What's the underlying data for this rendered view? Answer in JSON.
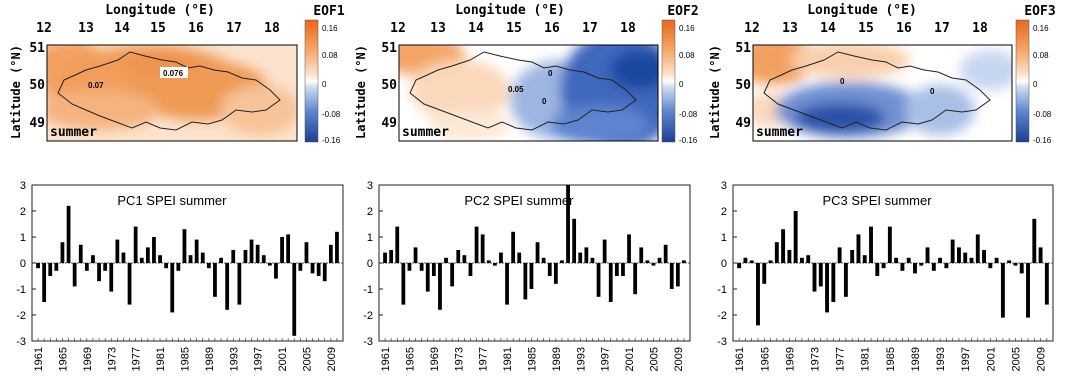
{
  "maps": [
    {
      "id": "eof1",
      "label": "EOF1",
      "season_label": "summer",
      "lon_title": "Longitude (°E)",
      "lat_title": "Latitude (°N)",
      "lon_ticks": [
        "12",
        "13",
        "14",
        "15",
        "16",
        "17",
        "18"
      ],
      "lat_ticks": [
        "51",
        "50",
        "49"
      ],
      "colorbar_ticks": [
        "0.16",
        "0.08",
        "0",
        "-0.08",
        "-0.16"
      ],
      "annotations": [
        "0.07",
        "0.076"
      ],
      "pattern": "uniform-positive",
      "colors": {
        "positive": "#f08a3c",
        "negative": "#1f4fa8",
        "neutral": "#ffffff"
      }
    },
    {
      "id": "eof2",
      "label": "EOF2",
      "season_label": "summer",
      "lon_title": "Longitude (°E)",
      "lat_title": "Latitude (°N)",
      "lon_ticks": [
        "12",
        "13",
        "14",
        "15",
        "16",
        "17",
        "18"
      ],
      "lat_ticks": [
        "51",
        "50",
        "49"
      ],
      "colorbar_ticks": [
        "0.16",
        "0.08",
        "0",
        "-0.08",
        "-0.16"
      ],
      "annotations": [
        "0",
        "0.05",
        "0"
      ],
      "pattern": "west-east-dipole",
      "colors": {
        "positive": "#f08a3c",
        "negative": "#1f4fa8",
        "neutral": "#ffffff"
      }
    },
    {
      "id": "eof3",
      "label": "EOF3",
      "season_label": "summer",
      "lon_title": "Longitude (°E)",
      "lat_title": "Latitude (°N)",
      "lon_ticks": [
        "12",
        "13",
        "14",
        "15",
        "16",
        "17",
        "18"
      ],
      "lat_ticks": [
        "51",
        "50",
        "49"
      ],
      "colorbar_ticks": [
        "0.16",
        "0.08",
        "0",
        "-0.08",
        "-0.16"
      ],
      "annotations": [
        "0",
        "0"
      ],
      "pattern": "north-south-dipole",
      "colors": {
        "positive": "#f08a3c",
        "negative": "#1f4fa8",
        "neutral": "#ffffff"
      }
    }
  ],
  "chart_data": [
    {
      "type": "bar",
      "title": "PC1 SPEI summer",
      "ylim": [
        -3,
        3
      ],
      "yticks": [
        "3",
        "2",
        "1",
        "0",
        "-1",
        "-2",
        "-3"
      ],
      "xtick_labels": [
        "1961",
        "1965",
        "1969",
        "1973",
        "1977",
        "1981",
        "1985",
        "1989",
        "1993",
        "1997",
        "2001",
        "2005",
        "2009"
      ],
      "x": [
        1961,
        1962,
        1963,
        1964,
        1965,
        1966,
        1967,
        1968,
        1969,
        1970,
        1971,
        1972,
        1973,
        1974,
        1975,
        1976,
        1977,
        1978,
        1979,
        1980,
        1981,
        1982,
        1983,
        1984,
        1985,
        1986,
        1987,
        1988,
        1989,
        1990,
        1991,
        1992,
        1993,
        1994,
        1995,
        1996,
        1997,
        1998,
        1999,
        2000,
        2001,
        2002,
        2003,
        2004,
        2005,
        2006,
        2007,
        2008,
        2009,
        2010
      ],
      "values": [
        -0.2,
        -1.5,
        -0.5,
        -0.3,
        0.8,
        2.2,
        -0.9,
        0.7,
        -0.3,
        0.3,
        -0.7,
        -0.3,
        -1.1,
        0.9,
        0.4,
        -1.6,
        1.4,
        0.2,
        0.6,
        1.0,
        0.3,
        -0.2,
        -1.9,
        -0.3,
        1.3,
        0.3,
        0.9,
        0.4,
        -0.2,
        -1.3,
        0.2,
        -1.8,
        0.5,
        -1.6,
        0.5,
        0.9,
        0.7,
        0.3,
        -0.1,
        -0.6,
        1.0,
        1.1,
        -2.8,
        -0.3,
        0.8,
        -0.4,
        -0.5,
        -0.7,
        0.7,
        1.2
      ],
      "grid": false,
      "colors": {
        "bar": "#000000"
      }
    },
    {
      "type": "bar",
      "title": "PC2 SPEI summer",
      "ylim": [
        -3,
        3
      ],
      "yticks": [
        "3",
        "2",
        "1",
        "0",
        "-1",
        "-2",
        "-3"
      ],
      "xtick_labels": [
        "1961",
        "1965",
        "1969",
        "1973",
        "1977",
        "1981",
        "1985",
        "1989",
        "1993",
        "1997",
        "2001",
        "2005",
        "2009"
      ],
      "x": [
        1961,
        1962,
        1963,
        1964,
        1965,
        1966,
        1967,
        1968,
        1969,
        1970,
        1971,
        1972,
        1973,
        1974,
        1975,
        1976,
        1977,
        1978,
        1979,
        1980,
        1981,
        1982,
        1983,
        1984,
        1985,
        1986,
        1987,
        1988,
        1989,
        1990,
        1991,
        1992,
        1993,
        1994,
        1995,
        1996,
        1997,
        1998,
        1999,
        2000,
        2001,
        2002,
        2003,
        2004,
        2005,
        2006,
        2007,
        2008,
        2009,
        2010
      ],
      "values": [
        0.4,
        0.5,
        1.4,
        -1.6,
        -0.3,
        0.6,
        -0.3,
        -1.1,
        -0.5,
        -1.8,
        0.2,
        -0.9,
        0.5,
        0.3,
        -0.5,
        1.4,
        1.1,
        0.1,
        -0.1,
        0.4,
        -1.6,
        1.2,
        0.4,
        -1.4,
        -1.0,
        0.8,
        0.2,
        -0.5,
        -0.8,
        0.1,
        3.0,
        1.7,
        0.4,
        0.6,
        0.2,
        -1.3,
        0.9,
        -1.5,
        -0.5,
        -0.5,
        1.1,
        -1.2,
        0.6,
        0.1,
        -0.1,
        0.2,
        0.7,
        -1.0,
        -0.9,
        0.1
      ],
      "grid": false,
      "colors": {
        "bar": "#000000"
      }
    },
    {
      "type": "bar",
      "title": "PC3 SPEI summer",
      "ylim": [
        -3,
        3
      ],
      "yticks": [
        "3",
        "2",
        "1",
        "0",
        "-1",
        "-2",
        "-3"
      ],
      "xtick_labels": [
        "1961",
        "1965",
        "1969",
        "1973",
        "1977",
        "1981",
        "1985",
        "1989",
        "1993",
        "1997",
        "2001",
        "2005",
        "2009"
      ],
      "x": [
        1961,
        1962,
        1963,
        1964,
        1965,
        1966,
        1967,
        1968,
        1969,
        1970,
        1971,
        1972,
        1973,
        1974,
        1975,
        1976,
        1977,
        1978,
        1979,
        1980,
        1981,
        1982,
        1983,
        1984,
        1985,
        1986,
        1987,
        1988,
        1989,
        1990,
        1991,
        1992,
        1993,
        1994,
        1995,
        1996,
        1997,
        1998,
        1999,
        2000,
        2001,
        2002,
        2003,
        2004,
        2005,
        2006,
        2007,
        2008,
        2009,
        2010
      ],
      "values": [
        -0.2,
        0.2,
        0.1,
        -2.4,
        -0.8,
        0.1,
        0.8,
        1.3,
        0.5,
        2.0,
        0.2,
        0.3,
        -1.1,
        -0.9,
        -1.9,
        -1.5,
        0.6,
        -1.3,
        0.5,
        1.1,
        0.3,
        1.4,
        -0.5,
        -0.2,
        1.4,
        0.2,
        -0.3,
        0.2,
        -0.4,
        -0.1,
        0.6,
        -0.3,
        0.2,
        -0.2,
        0.9,
        0.6,
        0.4,
        0.2,
        1.1,
        0.5,
        -0.2,
        0.2,
        -2.1,
        0.1,
        -0.1,
        -0.4,
        -2.1,
        1.7,
        0.6,
        -1.6
      ],
      "grid": false,
      "colors": {
        "bar": "#000000"
      }
    }
  ]
}
